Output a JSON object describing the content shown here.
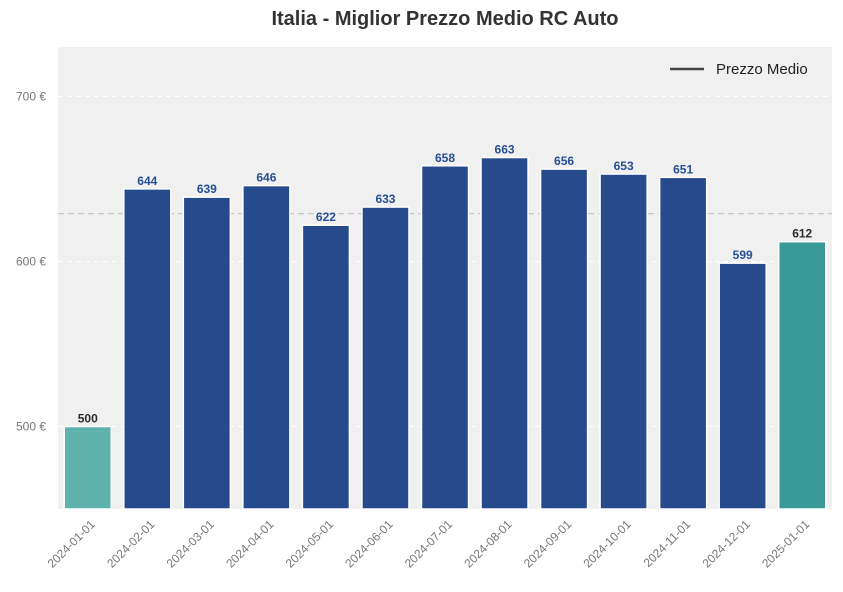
{
  "chart_data": {
    "type": "bar",
    "title": "Italia - Miglior Prezzo Medio RC Auto",
    "categories": [
      "2024-01-01",
      "2024-02-01",
      "2024-03-01",
      "2024-04-01",
      "2024-05-01",
      "2024-06-01",
      "2024-07-01",
      "2024-08-01",
      "2024-09-01",
      "2024-10-01",
      "2024-11-01",
      "2024-12-01",
      "2025-01-01"
    ],
    "values": [
      500,
      644,
      639,
      646,
      622,
      633,
      658,
      663,
      656,
      653,
      651,
      599,
      612
    ],
    "value_labels": [
      "500",
      "644",
      "639",
      "646",
      "622",
      "633",
      "658",
      "663",
      "656",
      "653",
      "651",
      "599",
      "612"
    ],
    "ylim": [
      450,
      730
    ],
    "yticks": [
      500,
      600,
      700
    ],
    "ytick_labels": [
      "500 €",
      "600 €",
      "700 €"
    ],
    "xlabel": "",
    "ylabel": "",
    "mean_line": {
      "value": 629,
      "legend_label": "Prezzo Medio"
    },
    "legend_position": "top-right",
    "grid": true,
    "colors": {
      "first_bar": "#5fb1ad",
      "middle_bars": "#264a8c",
      "last_bar": "#3a9a97",
      "middle_value_label": "#274f94",
      "edge_value_label": "#2b2b2b",
      "plot_background": "#f0f0f0",
      "mean_line": "#c8c8c8",
      "legend_line": "#444444"
    }
  }
}
